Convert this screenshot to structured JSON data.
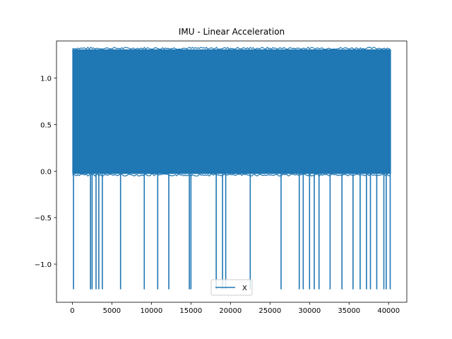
{
  "chart_data": {
    "type": "line",
    "title": "IMU - Linear Acceleration",
    "xlabel": "",
    "ylabel": "",
    "xlim": [
      -2000,
      42300
    ],
    "ylim": [
      -1.41,
      1.4
    ],
    "x_ticks": [
      0,
      5000,
      10000,
      15000,
      20000,
      25000,
      30000,
      35000,
      40000
    ],
    "x_tick_labels": [
      "0",
      "5000",
      "10000",
      "15000",
      "20000",
      "25000",
      "30000",
      "35000",
      "40000"
    ],
    "y_ticks": [
      -1.0,
      -0.5,
      0.0,
      0.5,
      1.0
    ],
    "y_tick_labels": [
      "−1.0",
      "−0.5",
      "0.0",
      "0.5",
      "1.0"
    ],
    "grid": false,
    "legend_position": "lower center",
    "series": [
      {
        "name": "X",
        "color": "#1f77b4",
        "x_range": [
          0,
          40300
        ],
        "band": {
          "typical_min": -0.03,
          "typical_max": 1.31
        },
        "spike_min_value": -1.27,
        "spike_x": [
          150,
          2300,
          2500,
          3000,
          3350,
          3800,
          6100,
          9100,
          10800,
          12200,
          14800,
          15000,
          18200,
          19000,
          19400,
          22500,
          26400,
          28700,
          29200,
          30000,
          30600,
          31200,
          32600,
          34100,
          35500,
          36400,
          37200,
          37700,
          38500,
          39400,
          39700,
          40200
        ]
      }
    ]
  }
}
